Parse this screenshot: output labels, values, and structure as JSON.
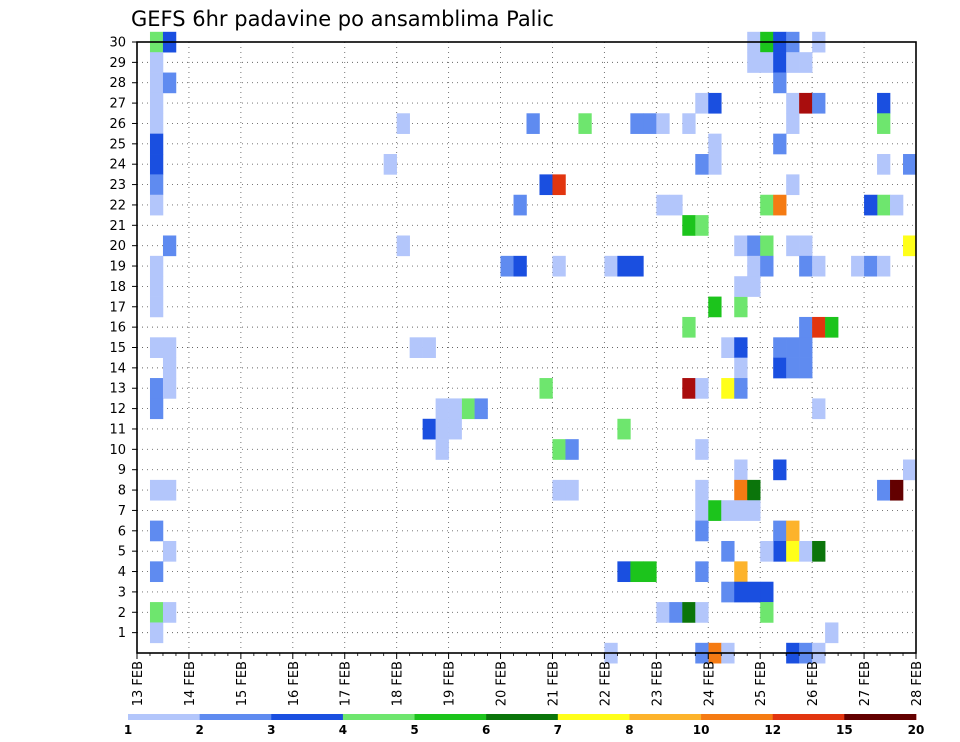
{
  "chart_data": {
    "type": "heatmap",
    "title": "GEFS 6hr padavine po ansamblima Palic",
    "xlabel": "",
    "ylabel": "",
    "x_tick_labels": [
      "13 FEB",
      "14 FEB",
      "15 FEB",
      "16 FEB",
      "17 FEB",
      "18 FEB",
      "19 FEB",
      "20 FEB",
      "21 FEB",
      "22 FEB",
      "23 FEB",
      "24 FEB",
      "25 FEB",
      "26 FEB",
      "27 FEB",
      "28 FEB"
    ],
    "y_tick_labels": [
      "1",
      "2",
      "3",
      "4",
      "5",
      "6",
      "7",
      "8",
      "9",
      "10",
      "11",
      "12",
      "13",
      "14",
      "15",
      "16",
      "17",
      "18",
      "19",
      "20",
      "21",
      "22",
      "23",
      "24",
      "25",
      "26",
      "27",
      "28",
      "29",
      "30"
    ],
    "x_range": [
      0,
      60
    ],
    "y_range": [
      0,
      30
    ],
    "grid": true,
    "steps_per_day": 4,
    "legend_position": "bottom",
    "legend": {
      "labels": [
        "1",
        "2",
        "3",
        "4",
        "5",
        "6",
        "7",
        "8",
        "10",
        "12",
        "15",
        "20"
      ],
      "colors": [
        "#b3c6fb",
        "#5f8bf0",
        "#1a4fe0",
        "#6ee66e",
        "#1cc41c",
        "#0b750b",
        "#ffff1a",
        "#fdb32b",
        "#f57b13",
        "#e2350f",
        "#a90d0d",
        "#630000"
      ]
    },
    "cells_note": "[time step index (6h steps from 13 FEB 00z), ensemble member, color class index]",
    "cells": [
      [
        1,
        30,
        3
      ],
      [
        2,
        30,
        2
      ],
      [
        1,
        29,
        0
      ],
      [
        1,
        28,
        0
      ],
      [
        2,
        28,
        1
      ],
      [
        1,
        27,
        0
      ],
      [
        1,
        26,
        0
      ],
      [
        1,
        25,
        2
      ],
      [
        1,
        24,
        2
      ],
      [
        1,
        23,
        1
      ],
      [
        1,
        22,
        0
      ],
      [
        2,
        20,
        1
      ],
      [
        1,
        19,
        0
      ],
      [
        1,
        18,
        0
      ],
      [
        1,
        17,
        0
      ],
      [
        1,
        15,
        0
      ],
      [
        2,
        15,
        0
      ],
      [
        2,
        14,
        0
      ],
      [
        1,
        13,
        1
      ],
      [
        2,
        13,
        0
      ],
      [
        1,
        12,
        1
      ],
      [
        1,
        8,
        0
      ],
      [
        2,
        8,
        0
      ],
      [
        1,
        6,
        1
      ],
      [
        2,
        5,
        0
      ],
      [
        1,
        4,
        1
      ],
      [
        1,
        2,
        3
      ],
      [
        2,
        2,
        0
      ],
      [
        1,
        1,
        0
      ],
      [
        20,
        26,
        0
      ],
      [
        20,
        20,
        0
      ],
      [
        19,
        24,
        0
      ],
      [
        21,
        15,
        0
      ],
      [
        22,
        15,
        0
      ],
      [
        22,
        11,
        2
      ],
      [
        23,
        11,
        0
      ],
      [
        24,
        11,
        0
      ],
      [
        23,
        10,
        0
      ],
      [
        25,
        12,
        3
      ],
      [
        26,
        12,
        1
      ],
      [
        23,
        12,
        0
      ],
      [
        24,
        12,
        0
      ],
      [
        28,
        19,
        1
      ],
      [
        29,
        19,
        2
      ],
      [
        29,
        22,
        1
      ],
      [
        31,
        23,
        2
      ],
      [
        32,
        23,
        9
      ],
      [
        30,
        26,
        1
      ],
      [
        34,
        26,
        3
      ],
      [
        31,
        13,
        3
      ],
      [
        32,
        10,
        3
      ],
      [
        33,
        10,
        1
      ],
      [
        32,
        8,
        0
      ],
      [
        33,
        8,
        0
      ],
      [
        32,
        19,
        0
      ],
      [
        36,
        19,
        0
      ],
      [
        37,
        19,
        2
      ],
      [
        38,
        19,
        2
      ],
      [
        38,
        26,
        1
      ],
      [
        39,
        26,
        1
      ],
      [
        40,
        26,
        0
      ],
      [
        42,
        26,
        0
      ],
      [
        40,
        22,
        0
      ],
      [
        41,
        22,
        0
      ],
      [
        37,
        11,
        3
      ],
      [
        37,
        4,
        2
      ],
      [
        38,
        4,
        4
      ],
      [
        39,
        4,
        4
      ],
      [
        40,
        2,
        0
      ],
      [
        41,
        2,
        1
      ],
      [
        42,
        2,
        5
      ],
      [
        43,
        2,
        0
      ],
      [
        43,
        27,
        0
      ],
      [
        44,
        27,
        2
      ],
      [
        44,
        25,
        0
      ],
      [
        44,
        24,
        0
      ],
      [
        43,
        24,
        1
      ],
      [
        42,
        21,
        4
      ],
      [
        43,
        21,
        3
      ],
      [
        42,
        16,
        3
      ],
      [
        42,
        13,
        10
      ],
      [
        43,
        13,
        0
      ],
      [
        43,
        10,
        0
      ],
      [
        43,
        8,
        0
      ],
      [
        43,
        7,
        0
      ],
      [
        44,
        7,
        4
      ],
      [
        43,
        6,
        1
      ],
      [
        45,
        5,
        1
      ],
      [
        43,
        4,
        1
      ],
      [
        44,
        17,
        4
      ],
      [
        46,
        17,
        3
      ],
      [
        46,
        18,
        0
      ],
      [
        47,
        18,
        0
      ],
      [
        45,
        15,
        0
      ],
      [
        46,
        15,
        2
      ],
      [
        46,
        14,
        0
      ],
      [
        45,
        13,
        6
      ],
      [
        46,
        13,
        1
      ],
      [
        46,
        9,
        0
      ],
      [
        46,
        8,
        8
      ],
      [
        47,
        8,
        5
      ],
      [
        45,
        7,
        0
      ],
      [
        46,
        7,
        0
      ],
      [
        47,
        7,
        0
      ],
      [
        46,
        4,
        7
      ],
      [
        45,
        3,
        1
      ],
      [
        46,
        3,
        2
      ],
      [
        47,
        3,
        2
      ],
      [
        48,
        3,
        2
      ],
      [
        48,
        2,
        3
      ],
      [
        46,
        20,
        0
      ],
      [
        47,
        20,
        1
      ],
      [
        48,
        20,
        3
      ],
      [
        47,
        19,
        0
      ],
      [
        48,
        22,
        3
      ],
      [
        49,
        22,
        8
      ],
      [
        48,
        19,
        1
      ],
      [
        47,
        30,
        0
      ],
      [
        48,
        30,
        4
      ],
      [
        49,
        30,
        2
      ],
      [
        50,
        30,
        1
      ],
      [
        52,
        30,
        0
      ],
      [
        47,
        29,
        0
      ],
      [
        48,
        29,
        0
      ],
      [
        49,
        29,
        2
      ],
      [
        50,
        29,
        0
      ],
      [
        51,
        29,
        0
      ],
      [
        49,
        28,
        1
      ],
      [
        50,
        27,
        0
      ],
      [
        51,
        27,
        10
      ],
      [
        52,
        27,
        1
      ],
      [
        50,
        26,
        0
      ],
      [
        49,
        25,
        1
      ],
      [
        50,
        23,
        0
      ],
      [
        50,
        20,
        0
      ],
      [
        51,
        20,
        0
      ],
      [
        51,
        19,
        1
      ],
      [
        52,
        19,
        0
      ],
      [
        49,
        15,
        1
      ],
      [
        51,
        16,
        1
      ],
      [
        51,
        15,
        1
      ],
      [
        50,
        15,
        1
      ],
      [
        49,
        14,
        2
      ],
      [
        50,
        14,
        1
      ],
      [
        51,
        14,
        1
      ],
      [
        52,
        12,
        0
      ],
      [
        49,
        9,
        2
      ],
      [
        49,
        6,
        1
      ],
      [
        50,
        6,
        7
      ],
      [
        49,
        5,
        2
      ],
      [
        50,
        5,
        6
      ],
      [
        51,
        5,
        0
      ],
      [
        48,
        5,
        0
      ],
      [
        52,
        5,
        5
      ],
      [
        52,
        16,
        9
      ],
      [
        53,
        16,
        4
      ],
      [
        53,
        1,
        0
      ],
      [
        50,
        0,
        2
      ],
      [
        51,
        0,
        1
      ],
      [
        52,
        0,
        0
      ],
      [
        44,
        0,
        8
      ],
      [
        43,
        0,
        1
      ],
      [
        45,
        0,
        0
      ],
      [
        36,
        0,
        0
      ],
      [
        57,
        27,
        2
      ],
      [
        57,
        26,
        3
      ],
      [
        57,
        24,
        0
      ],
      [
        59,
        24,
        1
      ],
      [
        57,
        22,
        3
      ],
      [
        58,
        22,
        0
      ],
      [
        56,
        22,
        2
      ],
      [
        55,
        19,
        0
      ],
      [
        56,
        19,
        1
      ],
      [
        57,
        19,
        0
      ],
      [
        59,
        20,
        6
      ],
      [
        59,
        9,
        0
      ],
      [
        57,
        8,
        1
      ],
      [
        58,
        8,
        11
      ]
    ]
  }
}
